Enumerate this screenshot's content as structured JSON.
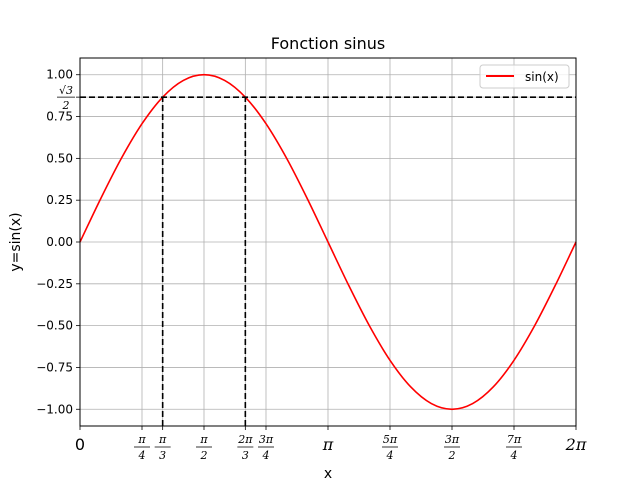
{
  "chart_data": {
    "type": "line",
    "title": "Fonction sinus",
    "xlabel": "x",
    "ylabel": "y=sin(x)",
    "xlim": [
      0,
      6.283185307179586
    ],
    "ylim": [
      -1.1,
      1.1
    ],
    "grid": true,
    "legend_position": "top-right",
    "series": [
      {
        "name": "sin(x)",
        "color": "#ff0000",
        "x": [
          0,
          0.2618,
          0.5236,
          0.7854,
          1.0472,
          1.309,
          1.5708,
          1.8326,
          2.0944,
          2.3562,
          2.618,
          2.8798,
          3.1416,
          3.4034,
          3.6652,
          3.927,
          4.1888,
          4.4506,
          4.7124,
          4.9742,
          5.236,
          5.4978,
          5.7596,
          6.0214,
          6.2832
        ],
        "y": [
          0,
          0.2588,
          0.5,
          0.7071,
          0.866,
          0.9659,
          1,
          0.9659,
          0.866,
          0.7071,
          0.5,
          0.2588,
          0,
          -0.2588,
          -0.5,
          -0.7071,
          -0.866,
          -0.9659,
          -1,
          -0.9659,
          -0.866,
          -0.7071,
          -0.5,
          -0.2588,
          0
        ]
      }
    ],
    "reference_lines": [
      {
        "kind": "horizontal",
        "y": 0.8660254,
        "x_from": 0,
        "x_to": 6.283185307179586,
        "color": "#000000",
        "style": "dashed"
      },
      {
        "kind": "vertical",
        "x": 1.0471976,
        "y_from": -1.1,
        "y_to": 0.8660254,
        "color": "#000000",
        "style": "dashed"
      },
      {
        "kind": "vertical",
        "x": 2.0943951,
        "y_from": -1.1,
        "y_to": 0.8660254,
        "color": "#000000",
        "style": "dashed"
      }
    ],
    "y_ticks": [
      {
        "value": -1.0,
        "label": "−1.00"
      },
      {
        "value": -0.75,
        "label": "−0.75"
      },
      {
        "value": -0.5,
        "label": "−0.50"
      },
      {
        "value": -0.25,
        "label": "−0.25"
      },
      {
        "value": 0.0,
        "label": "0.00"
      },
      {
        "value": 0.25,
        "label": "0.25"
      },
      {
        "value": 0.5,
        "label": "0.50"
      },
      {
        "value": 0.75,
        "label": "0.75"
      },
      {
        "value": 1.0,
        "label": "1.00"
      }
    ],
    "y_extra_tick": {
      "value": 0.8660254,
      "numerator": "√3",
      "denominator": "2"
    },
    "x_ticks": [
      {
        "value": 0,
        "label": "0"
      },
      {
        "value": 0.7853982,
        "numerator": "π",
        "denominator": "4"
      },
      {
        "value": 1.0471976,
        "numerator": "π",
        "denominator": "3"
      },
      {
        "value": 1.5707963,
        "numerator": "π",
        "denominator": "2"
      },
      {
        "value": 2.0943951,
        "numerator": "2π",
        "denominator": "3"
      },
      {
        "value": 2.3561945,
        "numerator": "3π",
        "denominator": "4"
      },
      {
        "value": 3.1415927,
        "label": "π"
      },
      {
        "value": 3.9269908,
        "numerator": "5π",
        "denominator": "4"
      },
      {
        "value": 4.712389,
        "numerator": "3π",
        "denominator": "2"
      },
      {
        "value": 5.4977871,
        "numerator": "7π",
        "denominator": "4"
      },
      {
        "value": 6.2831853,
        "label": "2π"
      }
    ]
  }
}
